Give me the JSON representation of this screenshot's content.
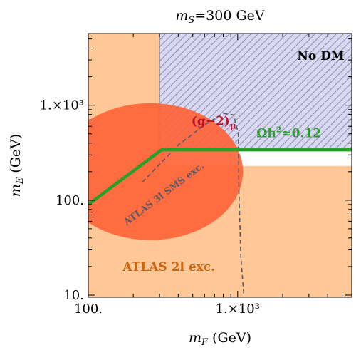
{
  "chart_data": {
    "type": "region",
    "title": {
      "var": "m",
      "sub": "S",
      "rest": "=300 GeV"
    },
    "xlabel": {
      "var": "m",
      "sub": "F",
      "rest": " (GeV)"
    },
    "ylabel": {
      "var": "m",
      "sub": "E",
      "rest": " (GeV)"
    },
    "xscale": "log",
    "yscale": "log",
    "xlim": [
      100,
      5800
    ],
    "ylim": [
      9.5,
      5700
    ],
    "xticks": [
      {
        "value": 100,
        "label": "100."
      },
      {
        "value": 1000,
        "label": "1.×10³"
      }
    ],
    "yticks": [
      {
        "value": 10,
        "label": "10."
      },
      {
        "value": 100,
        "label": "100."
      },
      {
        "value": 1000,
        "label": "1.×10³"
      }
    ],
    "regions": [
      {
        "label": "ATLAS 2l exc.",
        "color": "#ffc896",
        "label_color": "#cc6410",
        "label_at": [
          170,
          18
        ],
        "polygons": [
          [
            [
              100,
              9.5
            ],
            [
              5800,
              9.5
            ],
            [
              5800,
              230
            ],
            [
              320,
              230
            ],
            [
              320,
              5700
            ],
            [
              100,
              5700
            ]
          ],
          [
            [
              100,
              5700
            ],
            [
              205,
              5700
            ],
            [
              205,
              9.5
            ],
            [
              100,
              9.5
            ]
          ]
        ]
      },
      {
        "label": "No DM",
        "color": "#d8d8f0",
        "hatch_color": "#8c8cb4",
        "label_color": "#000000",
        "label_at": [
          2500,
          3000
        ],
        "polygons": [
          [
            [
              300,
              5700
            ],
            [
              5800,
              5700
            ],
            [
              5800,
              340
            ],
            [
              300,
              340
            ]
          ]
        ]
      },
      {
        "label": "(g−2)μ",
        "color": "#ff6438",
        "label_color": "#c0102a",
        "label_at": [
          490,
          620
        ],
        "ellipse": {
          "center": [
            260,
            200
          ],
          "log_rx": 0.62,
          "log_ry": 0.72
        }
      }
    ],
    "lines": [
      {
        "label": "ATLAS 3l SMS exc.",
        "style": "dashed",
        "color": "#5a5a64",
        "label_at": [
          330,
          110
        ],
        "points": [
          [
            230,
            155
          ],
          [
            400,
            380
          ],
          [
            600,
            620
          ],
          [
            800,
            820
          ],
          [
            940,
            790
          ],
          [
            1010,
            500
          ],
          [
            1020,
            120
          ],
          [
            1050,
            25
          ],
          [
            1100,
            10
          ]
        ]
      },
      {
        "label": "Ωh²≈0.12",
        "label_text": "Ωh",
        "label_sup": "2",
        "label_tail": "≈0.12",
        "style": "solid",
        "color": "#28a028",
        "label_at": [
          2200,
          460
        ],
        "points": [
          [
            100,
            90
          ],
          [
            310,
            340
          ],
          [
            5800,
            340
          ]
        ]
      }
    ]
  }
}
